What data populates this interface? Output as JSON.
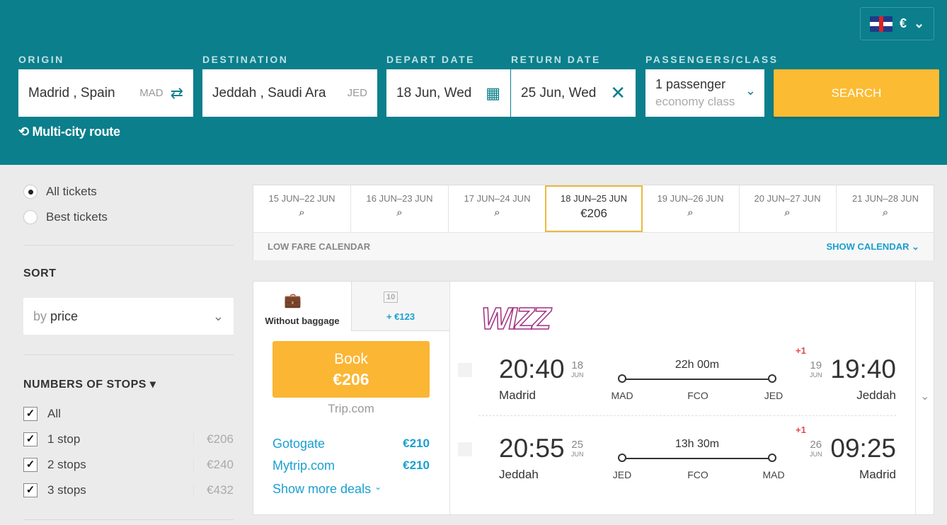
{
  "header": {
    "language": "English",
    "currency": "€",
    "labels": {
      "origin": "ORIGIN",
      "destination": "DESTINATION",
      "depart": "DEPART DATE",
      "return": "RETURN DATE",
      "passengers": "PASSENGERS/CLASS"
    },
    "origin": {
      "value": "Madrid , Spain",
      "code": "MAD"
    },
    "destination": {
      "value": "Jeddah , Saudi Arabia",
      "display": "Jeddah , Saudi Ara",
      "code": "JED"
    },
    "depart": "18 Jun, Wed",
    "return": "25 Jun, Wed",
    "passengers": "1 passenger",
    "class": "economy class",
    "search": "SEARCH",
    "multi_city": "Multi-city route"
  },
  "sidebar": {
    "filters": [
      {
        "label": "All tickets",
        "checked": true
      },
      {
        "label": "Best tickets",
        "checked": false
      }
    ],
    "sort_title": "SORT",
    "sort_prefix": "by",
    "sort_value": "price",
    "stops_title": "NUMBERS OF STOPS",
    "stops": [
      {
        "label": "All",
        "checked": true,
        "price": ""
      },
      {
        "label": "1 stop",
        "checked": true,
        "price": "€206"
      },
      {
        "label": "2 stops",
        "checked": true,
        "price": "€240"
      },
      {
        "label": "3 stops",
        "checked": true,
        "price": "€432"
      }
    ]
  },
  "dates": {
    "items": [
      {
        "range": "15 JUN–22 JUN",
        "price": null
      },
      {
        "range": "16 JUN–23 JUN",
        "price": null
      },
      {
        "range": "17 JUN–24 JUN",
        "price": null
      },
      {
        "range": "18 JUN–25 JUN",
        "price": "€206",
        "selected": true
      },
      {
        "range": "19 JUN–26 JUN",
        "price": null
      },
      {
        "range": "20 JUN–27 JUN",
        "price": null
      },
      {
        "range": "21 JUN–28 JUN",
        "price": null
      }
    ],
    "low_fare": "LOW FARE CALENDAR",
    "show_calendar": "SHOW CALENDAR"
  },
  "result": {
    "tab_without": "Without baggage",
    "tab_with": "+ €123",
    "baggage_kg": "10",
    "book": "Book",
    "price": "€206",
    "agent": "Trip.com",
    "deals": [
      {
        "name": "Gotogate",
        "price": "€210"
      },
      {
        "name": "Mytrip.com",
        "price": "€210"
      }
    ],
    "more": "Show more deals",
    "airline": "Wizz",
    "legs": [
      {
        "dep_time": "20:40",
        "dep_day": "18",
        "dep_mon": "JUN",
        "dep_city": "Madrid",
        "duration": "22h 00m",
        "stops": [
          "MAD",
          "FCO",
          "JED"
        ],
        "plus": "+1",
        "arr_day": "19",
        "arr_mon": "JUN",
        "arr_time": "19:40",
        "arr_city": "Jeddah"
      },
      {
        "dep_time": "20:55",
        "dep_day": "25",
        "dep_mon": "JUN",
        "dep_city": "Jeddah",
        "duration": "13h 30m",
        "stops": [
          "JED",
          "FCO",
          "MAD"
        ],
        "plus": "+1",
        "arr_day": "26",
        "arr_mon": "JUN",
        "arr_time": "09:25",
        "arr_city": "Madrid"
      }
    ]
  }
}
